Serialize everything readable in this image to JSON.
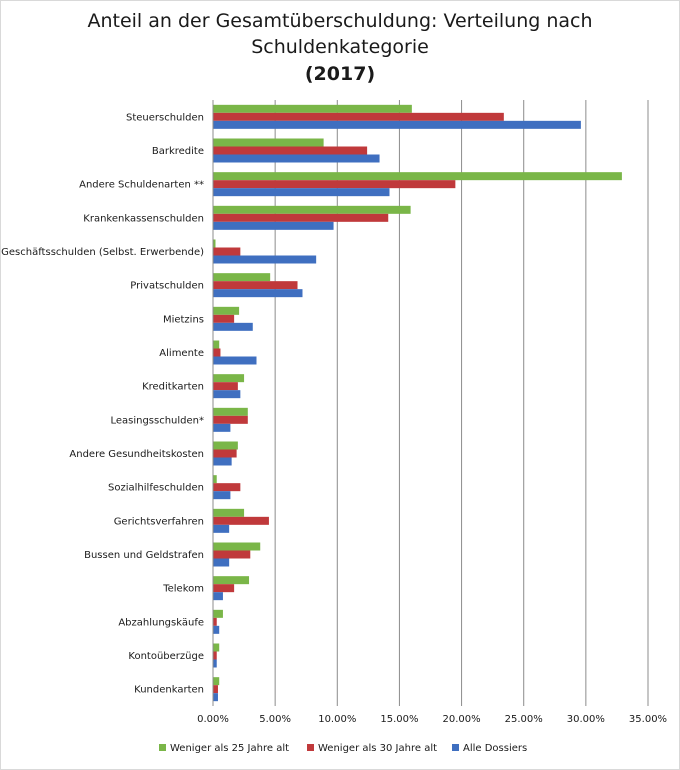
{
  "chart_data": {
    "type": "bar",
    "orientation": "horizontal",
    "title_lines": [
      "Anteil an der Gesamtüberschuldung: Verteilung nach",
      "Schuldenkategorie"
    ],
    "title_year": "(2017)",
    "categories": [
      "Steuerschulden",
      "Barkredite",
      "Andere Schuldenarten **",
      "Krankenkassenschulden",
      "Geschäftsschulden (Selbst. Erwerbende)",
      "Privatschulden",
      "Mietzins",
      "Alimente",
      "Kreditkarten",
      "Leasingsschulden*",
      "Andere Gesundheitskosten",
      "Sozialhilfeschulden",
      "Gerichtsverfahren",
      "Bussen und Geldstrafen",
      "Telekom",
      "Abzahlungskäufe",
      "Kontoüberzüge",
      "Kundenkarten"
    ],
    "series": [
      {
        "name": "Weniger als 25 Jahre alt",
        "color": "#7ab648",
        "values": [
          16.0,
          8.9,
          32.9,
          15.9,
          0.2,
          4.6,
          2.1,
          0.5,
          2.5,
          2.8,
          2.0,
          0.3,
          2.5,
          3.8,
          2.9,
          0.8,
          0.5,
          0.5
        ]
      },
      {
        "name": "Weniger als 30 Jahre alt",
        "color": "#c0393b",
        "values": [
          23.4,
          12.4,
          19.5,
          14.1,
          2.2,
          6.8,
          1.7,
          0.6,
          2.0,
          2.8,
          1.9,
          2.2,
          4.5,
          3.0,
          1.7,
          0.3,
          0.3,
          0.4
        ]
      },
      {
        "name": "Alle Dossiers",
        "color": "#3f6fc0",
        "values": [
          29.6,
          13.4,
          14.2,
          9.7,
          8.3,
          7.2,
          3.2,
          3.5,
          2.2,
          1.4,
          1.5,
          1.4,
          1.3,
          1.3,
          0.8,
          0.5,
          0.3,
          0.4
        ]
      }
    ],
    "xlim": [
      0,
      35
    ],
    "xticks": [
      0,
      5,
      10,
      15,
      20,
      25,
      30,
      35
    ],
    "xtick_labels": [
      "0.00%",
      "5.00%",
      "10.00%",
      "15.00%",
      "20.00%",
      "25.00%",
      "30.00%",
      "35.00%"
    ],
    "grid": true,
    "legend_position": "bottom"
  }
}
